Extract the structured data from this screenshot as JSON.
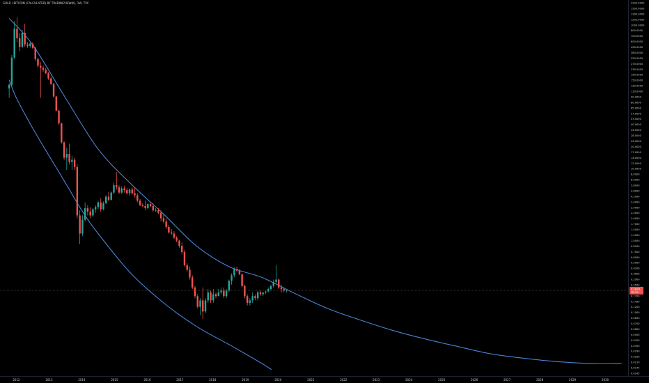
{
  "header": {
    "title": "GOLD / BITCOIN (CALCULATED) BY TRADINGVIEW(K), 1W, TVC"
  },
  "colors": {
    "background": "#000000",
    "bull": "#26a69a",
    "bear": "#ef5350",
    "curve": "#4a84d4",
    "axis_text": "#c9ccd3",
    "crosshair": "#5a4a3a",
    "badge": "#ef5350"
  },
  "chart_data": {
    "type": "candlestick",
    "x_range": [
      2011.5,
      2030.7
    ],
    "y_scale": "log",
    "y_range": [
      0.011,
      2600
    ],
    "x_ticks": [
      "2012",
      "2013",
      "2014",
      "2015",
      "2016",
      "2017",
      "2018",
      "2019",
      "2020",
      "2021",
      "2022",
      "2023",
      "2024",
      "2025",
      "2026",
      "2027",
      "2028",
      "2029",
      "2030"
    ],
    "y_ticks": [
      "2200.0000",
      "1500.0000",
      "1300.0000",
      "1200.0000",
      "1000.0000",
      "800.0000",
      "700.0000",
      "600.0000",
      "450.0000",
      "380.0000",
      "320.0000",
      "270.0000",
      "230.0000",
      "190.0000",
      "150.0000",
      "130.0000",
      "110.0000",
      "90.0000",
      "80.0000",
      "65.0000",
      "57.0000",
      "47.0000",
      "40.0000",
      "34.0000",
      "28.0000",
      "24.0000",
      "20.0000",
      "17.0000",
      "14.0000",
      "12.0000",
      "10.0000",
      "8.0000",
      "6.9000",
      "5.8000",
      "4.8000",
      "4.1000",
      "3.4000",
      "2.9000",
      "2.4000",
      "2.0000",
      "1.7000",
      "1.4000",
      "1.2000",
      "1.0000",
      "0.8500",
      "0.7000",
      "0.6000",
      "0.5000",
      "0.4200",
      "0.3500",
      "0.2900",
      "0.2500",
      "0.2100",
      "0.1700",
      "0.1450",
      "0.1200",
      "0.1000",
      "0.0850",
      "0.0700",
      "0.0600",
      "0.0500",
      "0.0420",
      "0.0350",
      "0.0290",
      "0.0250",
      "0.0210",
      "0.0175",
      "0.0145"
    ],
    "last_price": "0.1820",
    "last_price_sub": "3D 07h",
    "last_value": 0.182,
    "candles": [
      {
        "t": 2011.78,
        "o": 150,
        "h": 180,
        "l": 110,
        "c": 170
      },
      {
        "t": 2011.86,
        "o": 170,
        "h": 460,
        "l": 160,
        "c": 420
      },
      {
        "t": 2011.94,
        "o": 420,
        "h": 1400,
        "l": 400,
        "c": 1100
      },
      {
        "t": 2012.02,
        "o": 1100,
        "h": 1600,
        "l": 700,
        "c": 800
      },
      {
        "t": 2012.1,
        "o": 800,
        "h": 950,
        "l": 520,
        "c": 600
      },
      {
        "t": 2012.18,
        "o": 600,
        "h": 1050,
        "l": 580,
        "c": 960
      },
      {
        "t": 2012.26,
        "o": 960,
        "h": 1300,
        "l": 600,
        "c": 650
      },
      {
        "t": 2012.34,
        "o": 650,
        "h": 700,
        "l": 580,
        "c": 620
      },
      {
        "t": 2012.42,
        "o": 620,
        "h": 700,
        "l": 580,
        "c": 670
      },
      {
        "t": 2012.5,
        "o": 670,
        "h": 700,
        "l": 560,
        "c": 580
      },
      {
        "t": 2012.58,
        "o": 580,
        "h": 600,
        "l": 380,
        "c": 400
      },
      {
        "t": 2012.66,
        "o": 400,
        "h": 420,
        "l": 300,
        "c": 320
      },
      {
        "t": 2012.74,
        "o": 320,
        "h": 360,
        "l": 110,
        "c": 300
      },
      {
        "t": 2012.82,
        "o": 300,
        "h": 320,
        "l": 260,
        "c": 280
      },
      {
        "t": 2012.9,
        "o": 280,
        "h": 300,
        "l": 240,
        "c": 250
      },
      {
        "t": 2012.98,
        "o": 250,
        "h": 260,
        "l": 200,
        "c": 210
      },
      {
        "t": 2013.06,
        "o": 210,
        "h": 220,
        "l": 170,
        "c": 175
      },
      {
        "t": 2013.14,
        "o": 175,
        "h": 180,
        "l": 110,
        "c": 115
      },
      {
        "t": 2013.22,
        "o": 115,
        "h": 118,
        "l": 70,
        "c": 72
      },
      {
        "t": 2013.3,
        "o": 72,
        "h": 74,
        "l": 45,
        "c": 47
      },
      {
        "t": 2013.38,
        "o": 47,
        "h": 48,
        "l": 24,
        "c": 25
      },
      {
        "t": 2013.46,
        "o": 25,
        "h": 26,
        "l": 14,
        "c": 15
      },
      {
        "t": 2013.54,
        "o": 15,
        "h": 21,
        "l": 10,
        "c": 17
      },
      {
        "t": 2013.62,
        "o": 17,
        "h": 24,
        "l": 12,
        "c": 13
      },
      {
        "t": 2013.7,
        "o": 13,
        "h": 16,
        "l": 10,
        "c": 14
      },
      {
        "t": 2013.78,
        "o": 14,
        "h": 15,
        "l": 10,
        "c": 11
      },
      {
        "t": 2013.86,
        "o": 11,
        "h": 12,
        "l": 2,
        "c": 2.2
      },
      {
        "t": 2013.94,
        "o": 2.2,
        "h": 2.6,
        "l": 0.85,
        "c": 1.2
      },
      {
        "t": 2014.02,
        "o": 1.2,
        "h": 2.2,
        "l": 1.1,
        "c": 1.9
      },
      {
        "t": 2014.1,
        "o": 1.9,
        "h": 3.4,
        "l": 1.8,
        "c": 2.8
      },
      {
        "t": 2014.18,
        "o": 2.8,
        "h": 3.1,
        "l": 2.2,
        "c": 2.5
      },
      {
        "t": 2014.26,
        "o": 2.5,
        "h": 2.9,
        "l": 2.0,
        "c": 2.2
      },
      {
        "t": 2014.34,
        "o": 2.2,
        "h": 2.8,
        "l": 2.1,
        "c": 2.7
      },
      {
        "t": 2014.42,
        "o": 2.7,
        "h": 3.1,
        "l": 2.4,
        "c": 2.9
      },
      {
        "t": 2014.5,
        "o": 2.9,
        "h": 3.6,
        "l": 2.7,
        "c": 3.4
      },
      {
        "t": 2014.58,
        "o": 3.4,
        "h": 3.9,
        "l": 2.5,
        "c": 2.7
      },
      {
        "t": 2014.66,
        "o": 2.7,
        "h": 3.5,
        "l": 2.6,
        "c": 3.3
      },
      {
        "t": 2014.74,
        "o": 3.3,
        "h": 4.3,
        "l": 3.2,
        "c": 4.1
      },
      {
        "t": 2014.82,
        "o": 4.1,
        "h": 4.8,
        "l": 3.5,
        "c": 3.7
      },
      {
        "t": 2014.9,
        "o": 3.7,
        "h": 4.9,
        "l": 3.6,
        "c": 4.7
      },
      {
        "t": 2014.98,
        "o": 4.7,
        "h": 6.5,
        "l": 4.5,
        "c": 6.0
      },
      {
        "t": 2015.06,
        "o": 6.0,
        "h": 9.3,
        "l": 5.2,
        "c": 5.6
      },
      {
        "t": 2015.14,
        "o": 5.6,
        "h": 6.0,
        "l": 4.5,
        "c": 4.7
      },
      {
        "t": 2015.22,
        "o": 4.7,
        "h": 5.8,
        "l": 4.5,
        "c": 5.4
      },
      {
        "t": 2015.3,
        "o": 5.4,
        "h": 5.9,
        "l": 4.7,
        "c": 5.1
      },
      {
        "t": 2015.38,
        "o": 5.1,
        "h": 5.5,
        "l": 4.4,
        "c": 4.6
      },
      {
        "t": 2015.46,
        "o": 4.6,
        "h": 5.4,
        "l": 4.2,
        "c": 5.2
      },
      {
        "t": 2015.54,
        "o": 5.2,
        "h": 5.6,
        "l": 4.4,
        "c": 4.6
      },
      {
        "t": 2015.62,
        "o": 4.6,
        "h": 5.5,
        "l": 4.0,
        "c": 4.3
      },
      {
        "t": 2015.7,
        "o": 4.3,
        "h": 4.6,
        "l": 3.4,
        "c": 3.6
      },
      {
        "t": 2015.78,
        "o": 3.6,
        "h": 3.8,
        "l": 3.0,
        "c": 3.1
      },
      {
        "t": 2015.86,
        "o": 3.1,
        "h": 3.3,
        "l": 2.9,
        "c": 3.0
      },
      {
        "t": 2015.94,
        "o": 3.0,
        "h": 3.6,
        "l": 2.6,
        "c": 2.8
      },
      {
        "t": 2016.02,
        "o": 2.8,
        "h": 3.3,
        "l": 2.7,
        "c": 3.2
      },
      {
        "t": 2016.1,
        "o": 3.2,
        "h": 3.4,
        "l": 2.9,
        "c": 3.0
      },
      {
        "t": 2016.18,
        "o": 3.0,
        "h": 3.3,
        "l": 2.5,
        "c": 2.6
      },
      {
        "t": 2016.26,
        "o": 2.6,
        "h": 2.8,
        "l": 2.5,
        "c": 2.6
      },
      {
        "t": 2016.34,
        "o": 2.6,
        "h": 2.8,
        "l": 2.3,
        "c": 2.4
      },
      {
        "t": 2016.42,
        "o": 2.4,
        "h": 2.6,
        "l": 1.8,
        "c": 2.0
      },
      {
        "t": 2016.5,
        "o": 2.0,
        "h": 2.3,
        "l": 1.7,
        "c": 1.8
      },
      {
        "t": 2016.58,
        "o": 1.8,
        "h": 2.0,
        "l": 1.4,
        "c": 1.5
      },
      {
        "t": 2016.66,
        "o": 1.5,
        "h": 1.6,
        "l": 1.2,
        "c": 1.25
      },
      {
        "t": 2016.74,
        "o": 1.25,
        "h": 1.4,
        "l": 1.15,
        "c": 1.2
      },
      {
        "t": 2016.82,
        "o": 1.2,
        "h": 1.3,
        "l": 1.0,
        "c": 1.05
      },
      {
        "t": 2016.9,
        "o": 1.05,
        "h": 1.1,
        "l": 0.9,
        "c": 0.95
      },
      {
        "t": 2016.98,
        "o": 0.95,
        "h": 0.98,
        "l": 0.75,
        "c": 0.8
      },
      {
        "t": 2017.06,
        "o": 0.8,
        "h": 0.9,
        "l": 0.6,
        "c": 0.65
      },
      {
        "t": 2017.14,
        "o": 0.65,
        "h": 0.7,
        "l": 0.4,
        "c": 0.42
      },
      {
        "t": 2017.22,
        "o": 0.42,
        "h": 0.45,
        "l": 0.34,
        "c": 0.36
      },
      {
        "t": 2017.3,
        "o": 0.36,
        "h": 0.4,
        "l": 0.26,
        "c": 0.28
      },
      {
        "t": 2017.38,
        "o": 0.28,
        "h": 0.3,
        "l": 0.19,
        "c": 0.2
      },
      {
        "t": 2017.46,
        "o": 0.2,
        "h": 0.21,
        "l": 0.14,
        "c": 0.15
      },
      {
        "t": 2017.54,
        "o": 0.15,
        "h": 0.16,
        "l": 0.1,
        "c": 0.105
      },
      {
        "t": 2017.62,
        "o": 0.105,
        "h": 0.14,
        "l": 0.08,
        "c": 0.13
      },
      {
        "t": 2017.7,
        "o": 0.13,
        "h": 0.2,
        "l": 0.07,
        "c": 0.09
      },
      {
        "t": 2017.78,
        "o": 0.09,
        "h": 0.14,
        "l": 0.085,
        "c": 0.13
      },
      {
        "t": 2017.86,
        "o": 0.13,
        "h": 0.19,
        "l": 0.12,
        "c": 0.17
      },
      {
        "t": 2017.94,
        "o": 0.17,
        "h": 0.18,
        "l": 0.12,
        "c": 0.13
      },
      {
        "t": 2018.02,
        "o": 0.13,
        "h": 0.19,
        "l": 0.12,
        "c": 0.16
      },
      {
        "t": 2018.1,
        "o": 0.16,
        "h": 0.17,
        "l": 0.14,
        "c": 0.15
      },
      {
        "t": 2018.18,
        "o": 0.15,
        "h": 0.19,
        "l": 0.15,
        "c": 0.17
      },
      {
        "t": 2018.26,
        "o": 0.17,
        "h": 0.2,
        "l": 0.16,
        "c": 0.18
      },
      {
        "t": 2018.34,
        "o": 0.18,
        "h": 0.2,
        "l": 0.14,
        "c": 0.15
      },
      {
        "t": 2018.42,
        "o": 0.15,
        "h": 0.19,
        "l": 0.14,
        "c": 0.18
      },
      {
        "t": 2018.5,
        "o": 0.18,
        "h": 0.26,
        "l": 0.17,
        "c": 0.25
      },
      {
        "t": 2018.58,
        "o": 0.25,
        "h": 0.32,
        "l": 0.22,
        "c": 0.3
      },
      {
        "t": 2018.66,
        "o": 0.3,
        "h": 0.39,
        "l": 0.28,
        "c": 0.37
      },
      {
        "t": 2018.74,
        "o": 0.37,
        "h": 0.4,
        "l": 0.33,
        "c": 0.35
      },
      {
        "t": 2018.82,
        "o": 0.35,
        "h": 0.37,
        "l": 0.3,
        "c": 0.31
      },
      {
        "t": 2018.9,
        "o": 0.31,
        "h": 0.32,
        "l": 0.2,
        "c": 0.21
      },
      {
        "t": 2018.98,
        "o": 0.21,
        "h": 0.22,
        "l": 0.14,
        "c": 0.15
      },
      {
        "t": 2019.06,
        "o": 0.15,
        "h": 0.16,
        "l": 0.11,
        "c": 0.12
      },
      {
        "t": 2019.14,
        "o": 0.12,
        "h": 0.14,
        "l": 0.11,
        "c": 0.13
      },
      {
        "t": 2019.22,
        "o": 0.13,
        "h": 0.17,
        "l": 0.12,
        "c": 0.15
      },
      {
        "t": 2019.3,
        "o": 0.15,
        "h": 0.16,
        "l": 0.13,
        "c": 0.14
      },
      {
        "t": 2019.38,
        "o": 0.14,
        "h": 0.18,
        "l": 0.13,
        "c": 0.17
      },
      {
        "t": 2019.46,
        "o": 0.17,
        "h": 0.18,
        "l": 0.15,
        "c": 0.16
      },
      {
        "t": 2019.54,
        "o": 0.16,
        "h": 0.17,
        "l": 0.15,
        "c": 0.17
      },
      {
        "t": 2019.62,
        "o": 0.17,
        "h": 0.18,
        "l": 0.16,
        "c": 0.175
      },
      {
        "t": 2019.7,
        "o": 0.175,
        "h": 0.2,
        "l": 0.17,
        "c": 0.19
      },
      {
        "t": 2019.78,
        "o": 0.19,
        "h": 0.22,
        "l": 0.18,
        "c": 0.21
      },
      {
        "t": 2019.86,
        "o": 0.21,
        "h": 0.26,
        "l": 0.2,
        "c": 0.24
      },
      {
        "t": 2019.94,
        "o": 0.24,
        "h": 0.42,
        "l": 0.23,
        "c": 0.26
      },
      {
        "t": 2020.02,
        "o": 0.26,
        "h": 0.27,
        "l": 0.19,
        "c": 0.2
      },
      {
        "t": 2020.1,
        "o": 0.2,
        "h": 0.22,
        "l": 0.17,
        "c": 0.19
      },
      {
        "t": 2020.18,
        "o": 0.19,
        "h": 0.2,
        "l": 0.17,
        "c": 0.18
      },
      {
        "t": 2020.26,
        "o": 0.18,
        "h": 0.19,
        "l": 0.17,
        "c": 0.182
      }
    ],
    "curves": [
      {
        "name": "",
        "points": [
          [
            2011.78,
            1550
          ],
          [
            2012.5,
            640
          ],
          [
            2013.5,
            110
          ],
          [
            2014.5,
            20
          ],
          [
            2015.5,
            6.3
          ],
          [
            2016.5,
            2.3
          ],
          [
            2017.5,
            0.8
          ],
          [
            2018.5,
            0.4
          ],
          [
            2019.5,
            0.28
          ],
          [
            2020.5,
            0.165
          ],
          [
            2021.5,
            0.1
          ],
          [
            2022.5,
            0.068
          ],
          [
            2023.5,
            0.048
          ],
          [
            2024.5,
            0.036
          ],
          [
            2025.5,
            0.028
          ],
          [
            2026.5,
            0.022
          ],
          [
            2027.5,
            0.019
          ],
          [
            2028.5,
            0.017
          ],
          [
            2029.5,
            0.016
          ],
          [
            2030.5,
            0.016
          ]
        ]
      },
      {
        "name": "",
        "points": [
          [
            2011.78,
            200
          ],
          [
            2012.0,
            110
          ],
          [
            2012.5,
            40
          ],
          [
            2013.0,
            16
          ],
          [
            2013.5,
            6.5
          ],
          [
            2014.0,
            2.6
          ],
          [
            2014.5,
            1.2
          ],
          [
            2015.5,
            0.32
          ],
          [
            2016.5,
            0.12
          ],
          [
            2017.5,
            0.055
          ],
          [
            2018.5,
            0.03
          ],
          [
            2019.0,
            0.022
          ],
          [
            2019.5,
            0.016
          ],
          [
            2019.8,
            0.013
          ]
        ]
      }
    ]
  }
}
